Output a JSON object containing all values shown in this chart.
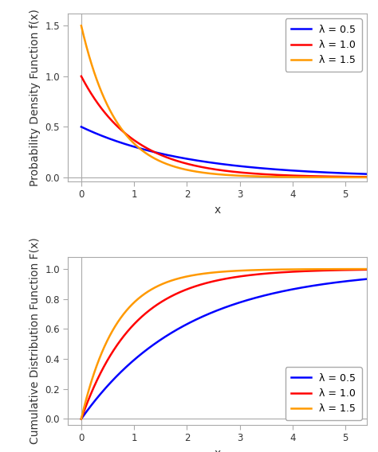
{
  "lambdas": [
    0.5,
    1.0,
    1.5
  ],
  "colors": [
    "#0000ff",
    "#ff0000",
    "#ff9900"
  ],
  "line_width": 1.8,
  "x_min": -0.25,
  "x_max": 5.4,
  "pdf_ylim": [
    -0.04,
    1.62
  ],
  "cdf_ylim": [
    -0.04,
    1.08
  ],
  "pdf_yticks": [
    0.0,
    0.5,
    1.0,
    1.5
  ],
  "cdf_yticks": [
    0.0,
    0.2,
    0.4,
    0.6,
    0.8,
    1.0
  ],
  "xticks": [
    0,
    1,
    2,
    3,
    4,
    5
  ],
  "pdf_ylabel": "Probability Density Function f(x)",
  "cdf_ylabel": "Cumulative Distribution Function F(x)",
  "xlabel": "x",
  "legend_labels": [
    "λ = 0.5",
    "λ = 1.0",
    "λ = 1.5"
  ],
  "bg_color": "#ffffff",
  "ax_bg_color": "#ffffff",
  "spine_color": "#aaaaaa",
  "grid_color": "#cccccc",
  "legend_fontsize": 9,
  "axis_label_fontsize": 10,
  "tick_fontsize": 8.5
}
